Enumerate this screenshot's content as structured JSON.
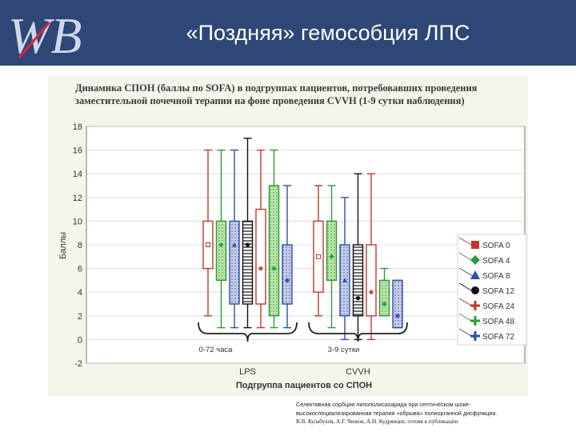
{
  "slide": {
    "logo_text": "WB",
    "title": "«Поздняя» гемособция ЛПС"
  },
  "colors": {
    "header_bg": "#2f4776",
    "chart_bg": "#f3f6eb",
    "logo_fill": "#cfd7ea",
    "logo_accent": "#d7263d"
  },
  "chart_data": {
    "type": "box",
    "title": [
      "Динамика СПОН (баллы по SOFA) в подгруппах пациентов, потребовавших проведения",
      "заместительной почечной терапии на фоне проведения CVVH (1-9 сутки наблюдения)"
    ],
    "xlabel": "Подгруппа пациентов со СПОН",
    "ylabel": "Баллы",
    "ylim": [
      -2,
      18
    ],
    "yticks": [
      -2,
      0,
      2,
      4,
      6,
      8,
      10,
      12,
      14,
      16,
      18
    ],
    "groups": [
      "LPS",
      "CVVH"
    ],
    "group_annotations": [
      "0-72 часа",
      "3-9 сутки"
    ],
    "series": [
      {
        "name": "SOFA 0",
        "color": "#c0392b",
        "marker": "square",
        "fill": "#ffffff",
        "pattern": "none",
        "groups": [
          {
            "min": 2,
            "q1": 6,
            "median": 8,
            "q3": 10,
            "max": 16
          },
          {
            "min": 2,
            "q1": 4,
            "median": 7,
            "q3": 10,
            "max": 13
          }
        ]
      },
      {
        "name": "SOFA 4",
        "color": "#2e9b3a",
        "marker": "diamond",
        "fill": "#b9e3a6",
        "pattern": "dots",
        "groups": [
          {
            "min": 1,
            "q1": 5,
            "median": 8,
            "q3": 10,
            "max": 16
          },
          {
            "min": 1,
            "q1": 5,
            "median": 7,
            "q3": 10,
            "max": 13
          }
        ]
      },
      {
        "name": "SOFA 8",
        "color": "#2f4fa5",
        "marker": "triangle",
        "fill": "#c7cde8",
        "pattern": "dots",
        "groups": [
          {
            "min": 1,
            "q1": 3,
            "median": 8,
            "q3": 10,
            "max": 16
          },
          {
            "min": 0,
            "q1": 2,
            "median": 5,
            "q3": 8,
            "max": 12
          }
        ]
      },
      {
        "name": "SOFA 12",
        "color": "#111111",
        "marker": "circle",
        "fill": "#ffffff",
        "pattern": "hlines",
        "groups": [
          {
            "min": 1,
            "q1": 3,
            "median": 8,
            "q3": 10,
            "max": 17
          },
          {
            "min": 0,
            "q1": 2,
            "median": 3.5,
            "q3": 8,
            "max": 14
          }
        ]
      },
      {
        "name": "SOFA 24",
        "color": "#c0392b",
        "marker": "plus",
        "fill": "#ffffff",
        "pattern": "none",
        "groups": [
          {
            "min": 1,
            "q1": 3,
            "median": 6,
            "q3": 11,
            "max": 16
          },
          {
            "min": 0,
            "q1": 2,
            "median": 4,
            "q3": 8,
            "max": 14
          }
        ]
      },
      {
        "name": "SOFA 48",
        "color": "#2e9b3a",
        "marker": "plus",
        "fill": "#b9e3a6",
        "pattern": "dots",
        "groups": [
          {
            "min": 1,
            "q1": 2,
            "median": 6,
            "q3": 13,
            "max": 16
          },
          {
            "min": 2,
            "q1": 2,
            "median": 3,
            "q3": 5,
            "max": 6
          }
        ]
      },
      {
        "name": "SOFA 72",
        "color": "#2f4fa5",
        "marker": "plus",
        "fill": "#c7cde8",
        "pattern": "dots",
        "groups": [
          {
            "min": 1,
            "q1": 3,
            "median": 5,
            "q3": 8,
            "max": 13
          },
          {
            "min": 1,
            "q1": 1,
            "median": 2,
            "q3": 5,
            "max": 5
          }
        ]
      }
    ]
  },
  "footer": {
    "line1": "Селективная сорбция липополисахарида при септическом шоке-",
    "line2": "высокоспециализированная терапия «обрыва» полиорганной дисфункции.",
    "line3": "В.В. Кулабухов, А.Г. Чижов, А.Н. Кудрявцев; готовя к публикации"
  }
}
